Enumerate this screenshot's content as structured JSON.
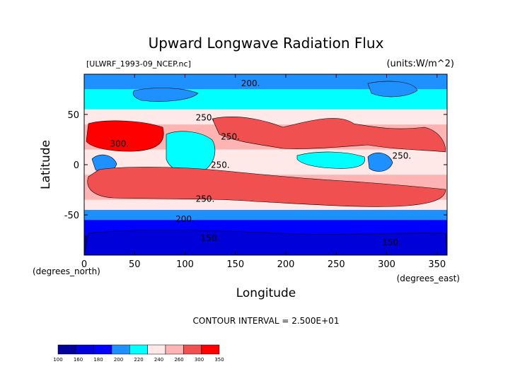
{
  "chart_data": {
    "type": "heatmap",
    "title": "Upward Longwave Radiation Flux",
    "dataset_label": "[ULWRF_1993-09_NCEP.nc]",
    "units_label": "(units:W/m^2)",
    "xlabel": "Longitude",
    "ylabel": "Latitude",
    "x_unit_label": "(degrees_east)",
    "y_unit_label": "(degrees_north)",
    "xlim": [
      0,
      360
    ],
    "ylim": [
      -90,
      90
    ],
    "x_ticks": [
      0,
      50,
      100,
      150,
      200,
      250,
      300,
      350
    ],
    "y_ticks": [
      50,
      0,
      -50
    ],
    "contour_interval_text": "CONTOUR INTERVAL = 2.500E+01",
    "contour_labels": [
      {
        "text": "200.",
        "lon": 165,
        "lat": 78
      },
      {
        "text": "250.",
        "lon": 120,
        "lat": 44
      },
      {
        "text": "250.",
        "lon": 145,
        "lat": 25
      },
      {
        "text": "300.",
        "lon": 35,
        "lat": 18
      },
      {
        "text": "250.",
        "lon": 135,
        "lat": -3
      },
      {
        "text": "250.",
        "lon": 315,
        "lat": 6
      },
      {
        "text": "250.",
        "lon": 120,
        "lat": -37
      },
      {
        "text": "200.",
        "lon": 100,
        "lat": -57
      },
      {
        "text": "150.",
        "lon": 125,
        "lat": -76
      },
      {
        "text": "150.",
        "lon": 305,
        "lat": -80
      }
    ],
    "colorbar": {
      "tick_labels": [
        "100",
        "160",
        "180",
        "200",
        "220",
        "240",
        "260",
        "300",
        "350"
      ],
      "colors": [
        "#00009c",
        "#0000d8",
        "#0000ff",
        "#1e90ff",
        "#00ffff",
        "#ffe8e8",
        "#ffb4b4",
        "#f05050",
        "#ff0000"
      ]
    },
    "latitude_bands": [
      {
        "lat_range": [
          90,
          75
        ],
        "approx_value": 215
      },
      {
        "lat_range": [
          75,
          55
        ],
        "approx_value": 225
      },
      {
        "lat_range": [
          55,
          40
        ],
        "approx_value": 240
      },
      {
        "lat_range": [
          40,
          15
        ],
        "approx_value": 270
      },
      {
        "lat_range": [
          15,
          -10
        ],
        "approx_value": 240
      },
      {
        "lat_range": [
          -10,
          -35
        ],
        "approx_value": 275
      },
      {
        "lat_range": [
          -35,
          -45
        ],
        "approx_value": 245
      },
      {
        "lat_range": [
          -45,
          -55
        ],
        "approx_value": 215
      },
      {
        "lat_range": [
          -55,
          -70
        ],
        "approx_value": 180
      },
      {
        "lat_range": [
          -70,
          -90
        ],
        "approx_value": 150
      }
    ]
  }
}
